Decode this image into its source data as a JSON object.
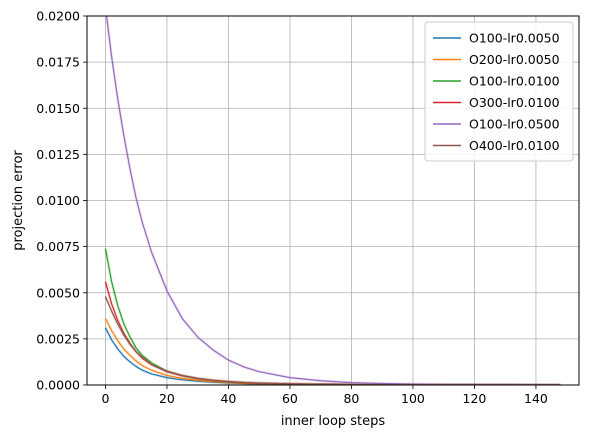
{
  "chart_data": {
    "type": "line",
    "title": "",
    "xlabel": "inner loop steps",
    "ylabel": "projection error",
    "xlim": [
      -6,
      154
    ],
    "ylim": [
      0,
      0.02
    ],
    "x_ticks": [
      0,
      20,
      40,
      60,
      80,
      100,
      120,
      140
    ],
    "x_tick_labels": [
      "0",
      "20",
      "40",
      "60",
      "80",
      "100",
      "120",
      "140"
    ],
    "y_ticks": [
      0,
      0.0025,
      0.005,
      0.0075,
      0.01,
      0.0125,
      0.015,
      0.0175,
      0.02
    ],
    "y_tick_labels": [
      "0.0000",
      "0.0025",
      "0.0050",
      "0.0075",
      "0.0100",
      "0.0125",
      "0.0150",
      "0.0175",
      "0.0200"
    ],
    "grid": true,
    "legend_position": "top-right",
    "x": [
      0,
      2,
      4,
      6,
      8,
      10,
      12,
      15,
      20,
      25,
      30,
      35,
      40,
      45,
      50,
      60,
      70,
      80,
      90,
      100,
      110,
      120,
      130,
      140,
      148
    ],
    "series": [
      {
        "name": "O100-lr0.0050",
        "color": "#1f77b4",
        "values": [
          0.0031,
          0.00245,
          0.00195,
          0.00155,
          0.00125,
          0.001,
          0.0008,
          0.0006,
          0.0004,
          0.00028,
          0.0002,
          0.00015,
          0.00011,
          8e-05,
          6e-05,
          4e-05,
          3e-05,
          2e-05,
          1.5e-05,
          1e-05,
          1e-05,
          5e-06,
          5e-06,
          3e-06,
          2e-06
        ]
      },
      {
        "name": "O200-lr0.0050",
        "color": "#ff7f0e",
        "values": [
          0.0036,
          0.00295,
          0.0024,
          0.00195,
          0.0016,
          0.0013,
          0.00105,
          0.0008,
          0.00052,
          0.00036,
          0.00025,
          0.00018,
          0.00013,
          9e-05,
          7e-05,
          4e-05,
          3e-05,
          2e-05,
          1.5e-05,
          1e-05,
          1e-05,
          5e-06,
          5e-06,
          3e-06,
          2e-06
        ]
      },
      {
        "name": "O100-lr0.0100",
        "color": "#2ca02c",
        "values": [
          0.0074,
          0.0056,
          0.0043,
          0.0033,
          0.0026,
          0.002,
          0.0016,
          0.0012,
          0.00075,
          0.0005,
          0.00034,
          0.00024,
          0.00017,
          0.00012,
          9e-05,
          5e-05,
          3e-05,
          2e-05,
          1.5e-05,
          1e-05,
          1e-05,
          5e-06,
          5e-06,
          3e-06,
          2e-06
        ]
      },
      {
        "name": "O300-lr0.0100",
        "color": "#d62728",
        "values": [
          0.0056,
          0.0044,
          0.0035,
          0.0028,
          0.00225,
          0.0018,
          0.00145,
          0.0011,
          0.00072,
          0.0005,
          0.00035,
          0.00025,
          0.00018,
          0.00013,
          0.0001,
          6e-05,
          4e-05,
          2e-05,
          1.5e-05,
          1e-05,
          1e-05,
          5e-06,
          5e-06,
          3e-06,
          2e-06
        ]
      },
      {
        "name": "O100-lr0.0500",
        "color": "#9467bd",
        "values": [
          0.0205,
          0.0178,
          0.0155,
          0.0135,
          0.0117,
          0.0101,
          0.0088,
          0.0072,
          0.0051,
          0.0036,
          0.0026,
          0.0019,
          0.00135,
          0.00098,
          0.00072,
          0.0004,
          0.00023,
          0.00013,
          8e-05,
          5e-05,
          3e-05,
          2e-05,
          1e-05,
          5e-06,
          3e-06
        ]
      },
      {
        "name": "O400-lr0.0100",
        "color": "#8c564b",
        "values": [
          0.0048,
          0.004,
          0.0033,
          0.0027,
          0.0022,
          0.0018,
          0.0015,
          0.0011,
          0.00075,
          0.00052,
          0.00036,
          0.00026,
          0.00019,
          0.00014,
          0.0001,
          6e-05,
          4e-05,
          2e-05,
          1.5e-05,
          1e-05,
          1e-05,
          5e-06,
          5e-06,
          3e-06,
          2e-06
        ]
      }
    ]
  }
}
